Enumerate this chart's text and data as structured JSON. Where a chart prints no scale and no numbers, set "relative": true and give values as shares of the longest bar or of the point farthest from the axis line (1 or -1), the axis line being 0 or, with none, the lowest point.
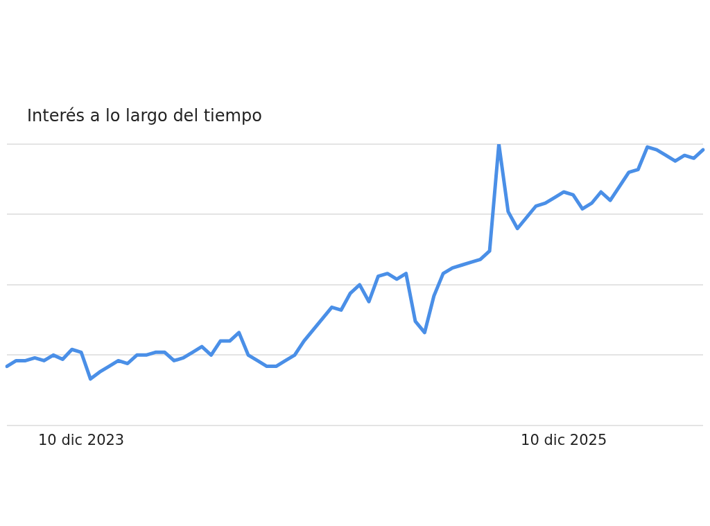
{
  "chart_data": {
    "type": "line",
    "title": "Interés a lo largo del tiempo",
    "relative": true,
    "grid": "y",
    "legend": false,
    "marker": "none",
    "line_style": "solid",
    "categories": [
      null,
      null,
      null,
      null,
      null,
      null,
      null,
      null,
      "10 dic 2023",
      null,
      null,
      null,
      null,
      null,
      null,
      null,
      null,
      null,
      null,
      null,
      null,
      null,
      null,
      null,
      null,
      null,
      null,
      null,
      null,
      null,
      null,
      null,
      null,
      null,
      null,
      null,
      null,
      null,
      null,
      null,
      null,
      null,
      null,
      null,
      null,
      null,
      null,
      null,
      null,
      null,
      null,
      null,
      null,
      null,
      null,
      null,
      null,
      null,
      null,
      null,
      "10 dic 2025",
      null,
      null,
      null,
      null,
      null,
      null,
      null,
      null,
      null,
      null,
      null,
      null,
      null,
      null,
      null
    ],
    "series": [
      {
        "color": "#4a8fe7",
        "values": [
          0.21,
          0.23,
          0.23,
          0.24,
          0.23,
          0.25,
          0.235,
          0.27,
          0.26,
          0.165,
          0.19,
          0.21,
          0.23,
          0.22,
          0.25,
          0.25,
          0.26,
          0.26,
          0.23,
          0.24,
          0.26,
          0.28,
          0.25,
          0.3,
          0.3,
          0.33,
          0.25,
          0.23,
          0.21,
          0.21,
          0.23,
          0.25,
          0.3,
          0.34,
          0.38,
          0.42,
          0.41,
          0.47,
          0.5,
          0.44,
          0.53,
          0.54,
          0.52,
          0.54,
          0.37,
          0.33,
          0.46,
          0.54,
          0.56,
          0.57,
          0.58,
          0.59,
          0.62,
          1,
          0.76,
          0.7,
          0.74,
          0.78,
          0.79,
          0.81,
          0.83,
          0.82,
          0.77,
          0.79,
          0.83,
          0.8,
          0.85,
          0.9,
          0.91,
          0.99,
          0.98,
          0.96,
          0.94,
          0.96,
          0.95,
          0.98
        ]
      }
    ]
  }
}
